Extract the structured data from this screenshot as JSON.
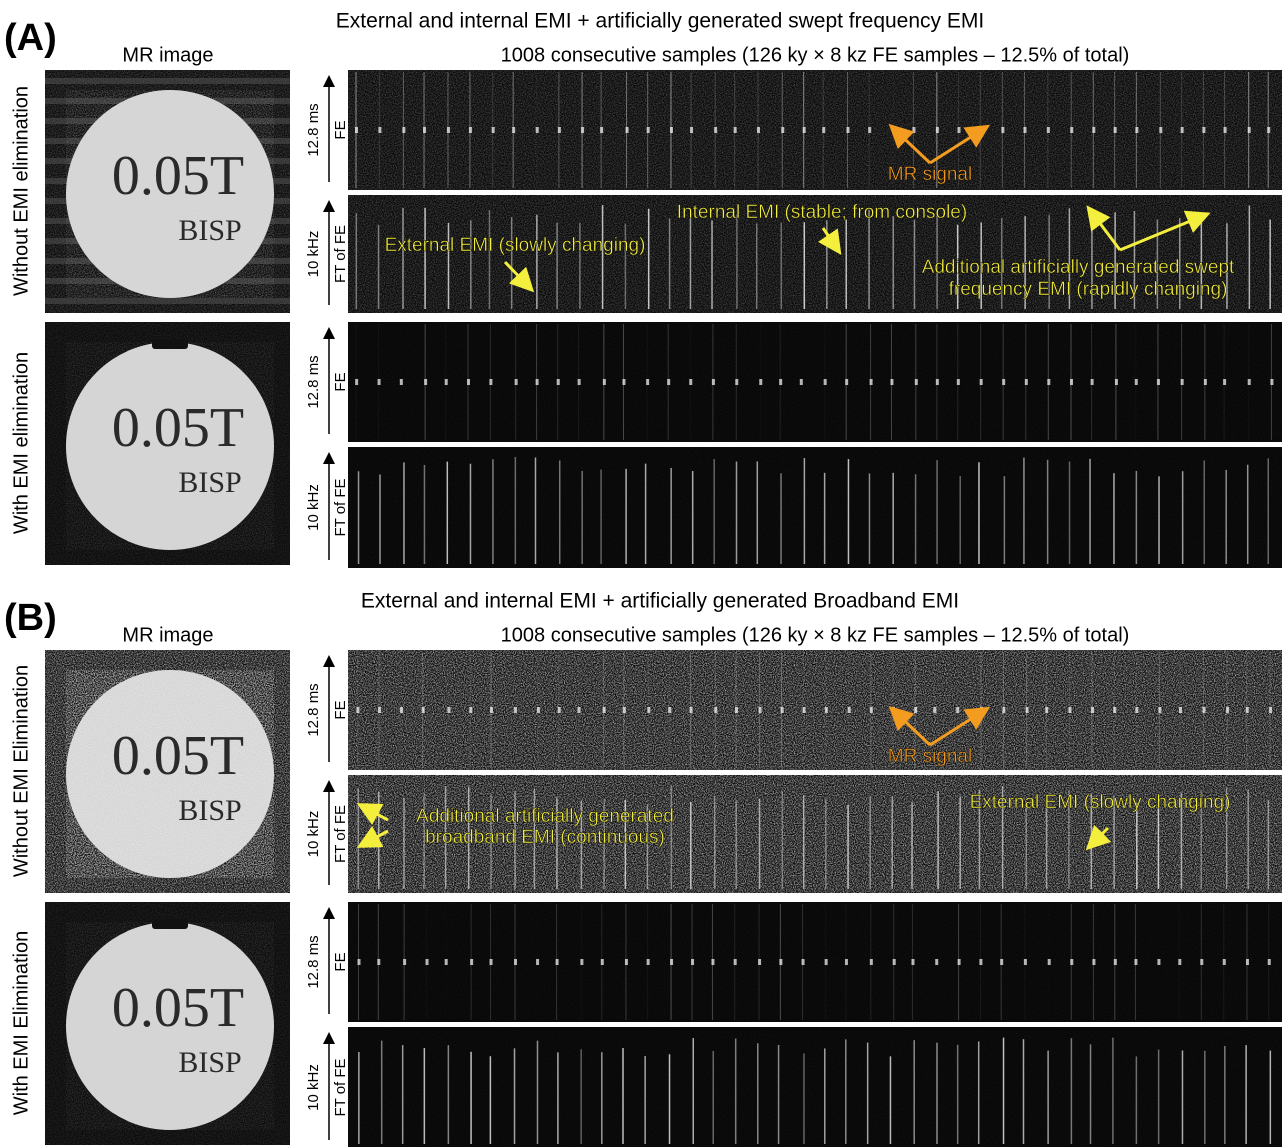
{
  "panels": [
    {
      "label": "(A)",
      "title": "External and internal EMI + artificially  generated swept  frequency EMI",
      "image_heading": "MR image",
      "samples_heading": "1008  consecutive samples (126 ky × 8 kz FE samples – 12.5% of  total)",
      "rows": [
        {
          "label": "Without EMI  elimination",
          "image_text": [
            "0.05T",
            "BISP"
          ],
          "strips": [
            {
              "axis_value": "12.8 ms",
              "axis_label": "FE"
            },
            {
              "axis_value": "10 kHz",
              "axis_label": "FT of FE"
            }
          ]
        },
        {
          "label": "With EMI  elimination",
          "image_text": [
            "0.05T",
            "BISP"
          ],
          "strips": [
            {
              "axis_value": "12.8 ms",
              "axis_label": "FE"
            },
            {
              "axis_value": "10 kHz",
              "axis_label": "FT of FE"
            }
          ]
        }
      ],
      "annotations": [
        "MR signal",
        "Internal EMI (stable; from console)",
        "External EMI (slowly changing)",
        "Additional artificially generated swept",
        "frequency EMI (rapidly changing)"
      ]
    },
    {
      "label": "(B)",
      "title": "External and internal EMI + artificially  generated Broadband EMI",
      "image_heading": "MR image",
      "samples_heading": "1008  consecutive samples (126 ky × 8 kz FE samples – 12.5% of  total)",
      "rows": [
        {
          "label": "Without EMI Elimination",
          "image_text": [
            "0.05T",
            "BISP"
          ],
          "strips": [
            {
              "axis_value": "12.8 ms",
              "axis_label": "FE"
            },
            {
              "axis_value": "10 kHz",
              "axis_label": "FT of FE"
            }
          ]
        },
        {
          "label": "With EMI Elimination",
          "image_text": [
            "0.05T",
            "BISP"
          ],
          "strips": [
            {
              "axis_value": "12.8 ms",
              "axis_label": "FE"
            },
            {
              "axis_value": "10 kHz",
              "axis_label": "FT of FE"
            }
          ]
        }
      ],
      "annotations": [
        "MR signal",
        "Additional artificially generated",
        "broadband EMI (continuous)",
        "External EMI (slowly changing)"
      ]
    }
  ]
}
